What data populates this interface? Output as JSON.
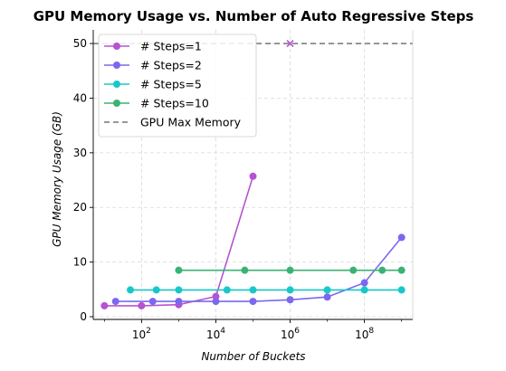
{
  "chart_data": {
    "type": "line",
    "title": "GPU Memory Usage vs. Number of Auto Regressive Steps",
    "xlabel": "Number of Buckets",
    "ylabel": "GPU Memory Usage (GB)",
    "x_scale": "log",
    "xlim": [
      5,
      2000000000
    ],
    "ylim": [
      -0.5,
      52.5
    ],
    "x_ticks": [
      {
        "value": 100,
        "base": "10",
        "exp": "2"
      },
      {
        "value": 10000,
        "base": "10",
        "exp": "4"
      },
      {
        "value": 1000000,
        "base": "10",
        "exp": "6"
      },
      {
        "value": 100000000,
        "base": "10",
        "exp": "8"
      }
    ],
    "y_ticks": [
      0,
      10,
      20,
      30,
      40,
      50
    ],
    "grid": true,
    "legend_position": "top-left",
    "max_memory": {
      "name": "GPU Max Memory",
      "value": 50,
      "color": "#757575"
    },
    "oom_marker": {
      "x": 1000000,
      "y": 50,
      "color": "#b553d1"
    },
    "series": [
      {
        "name": "# Steps=1",
        "color": "#b553d1",
        "x": [
          10,
          100,
          1000,
          10000,
          100000
        ],
        "y": [
          2.0,
          2.0,
          2.2,
          3.7,
          25.7
        ]
      },
      {
        "name": "# Steps=2",
        "color": "#7b68ee",
        "x": [
          20,
          200,
          1000,
          10000,
          100000,
          1000000,
          10000000,
          100000000,
          1000000000
        ],
        "y": [
          2.8,
          2.8,
          2.8,
          2.8,
          2.8,
          3.1,
          3.6,
          6.2,
          14.5
        ]
      },
      {
        "name": "# Steps=5",
        "color": "#17c8c8",
        "x": [
          50,
          250,
          1000,
          20000,
          100000,
          1000000,
          10000000,
          100000000,
          1000000000
        ],
        "y": [
          4.9,
          4.9,
          4.9,
          4.9,
          4.9,
          4.9,
          4.9,
          4.9,
          4.9
        ]
      },
      {
        "name": "# Steps=10",
        "color": "#3bb273",
        "x": [
          1000,
          60000,
          1000000,
          50000000,
          300000000,
          1000000000
        ],
        "y": [
          8.5,
          8.5,
          8.5,
          8.5,
          8.5,
          8.5
        ]
      }
    ]
  }
}
